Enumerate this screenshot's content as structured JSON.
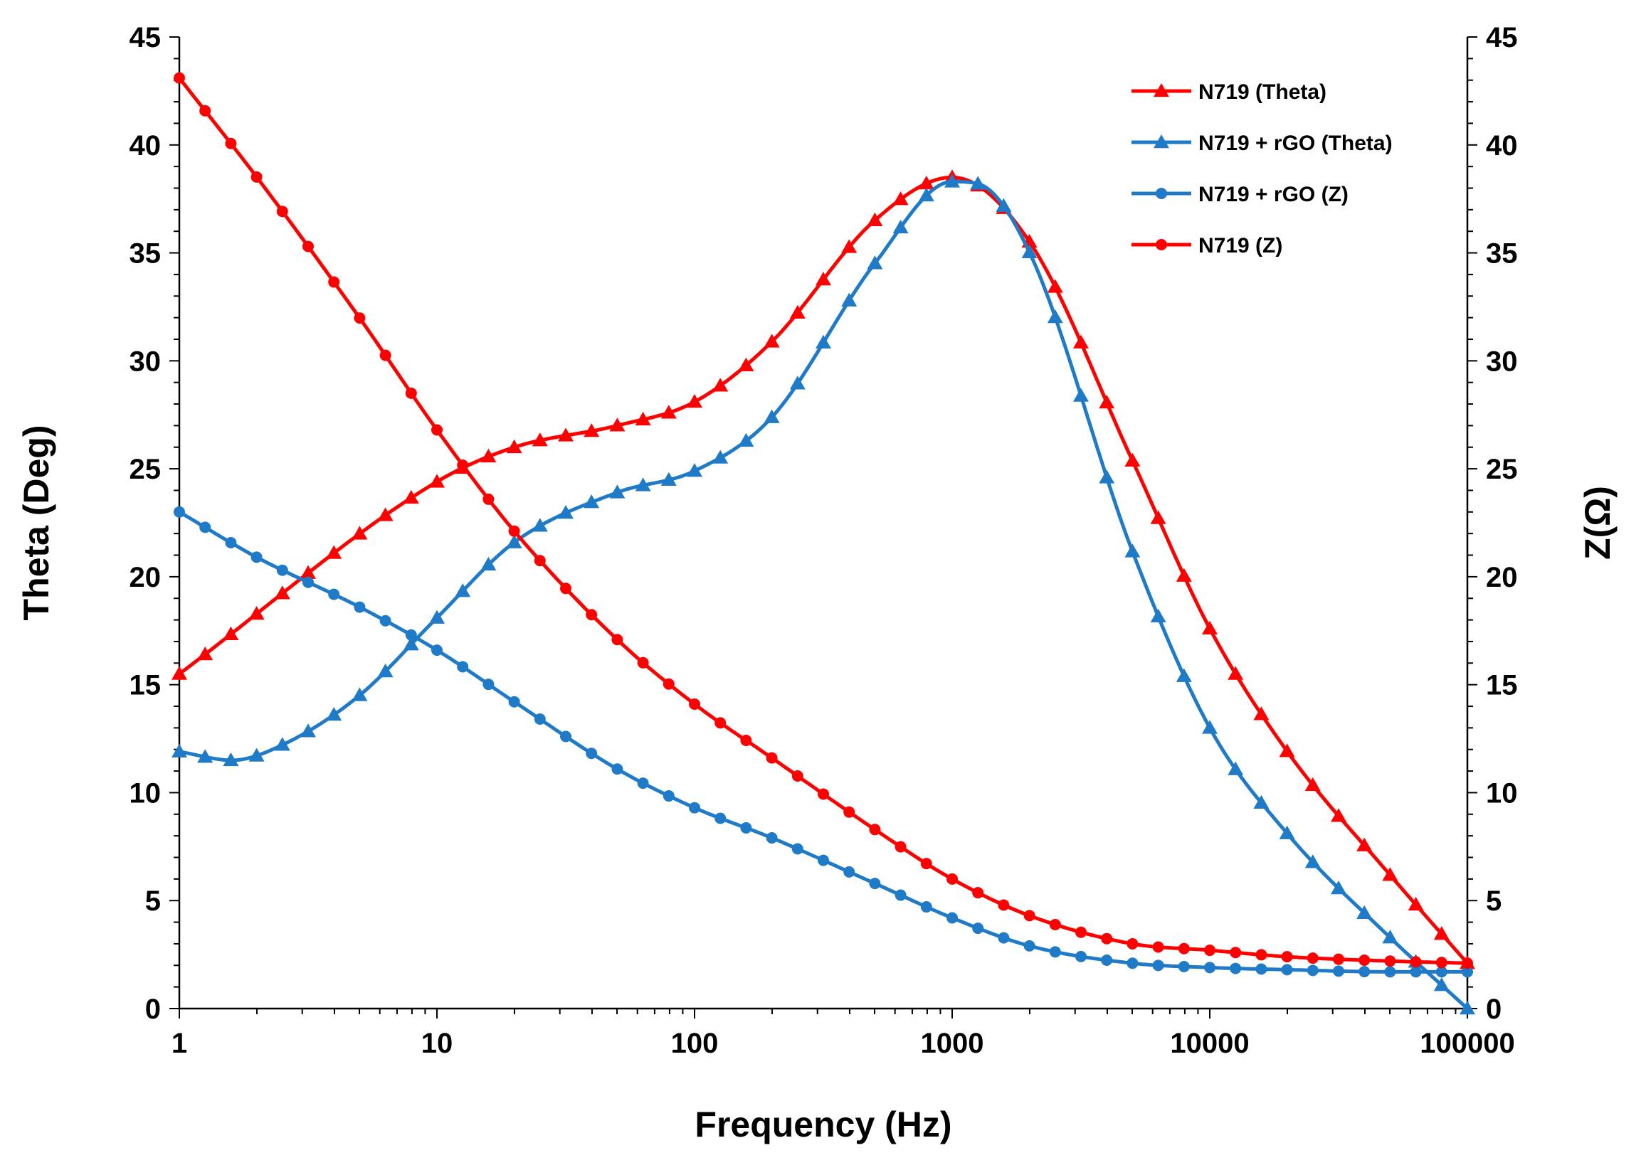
{
  "chart_data": {
    "type": "line",
    "title": "",
    "xlabel": "Frequency (Hz)",
    "ylabel": "Theta (Deg)",
    "y2label": "Z(Ω)",
    "x_scale": "log",
    "xlim": [
      1,
      100000
    ],
    "ylim": [
      0,
      45
    ],
    "y2lim": [
      0,
      45
    ],
    "x_tick_labels": [
      "1",
      "10",
      "100",
      "1000",
      "10000",
      "100000"
    ],
    "y_tick_labels": [
      "0",
      "5",
      "10",
      "15",
      "20",
      "25",
      "30",
      "35",
      "40",
      "45"
    ],
    "y2_tick_labels": [
      "0",
      "5",
      "10",
      "15",
      "20",
      "25",
      "30",
      "35",
      "40",
      "45"
    ],
    "grid": false,
    "legend_position": "top-right",
    "colors": {
      "red": "#ff0000",
      "blue": "#1f7bc7"
    },
    "series": [
      {
        "name": "N719 (Theta)",
        "color": "#ff0000",
        "marker": "triangle",
        "axis": "left",
        "x": [
          1,
          10,
          20,
          50,
          100,
          200,
          500,
          1000,
          2000,
          5000,
          10000,
          20000,
          50000,
          100000
        ],
        "values": [
          15.5,
          24.4,
          26.0,
          27.0,
          28.1,
          30.9,
          36.5,
          38.5,
          35.5,
          25.4,
          17.6,
          11.9,
          6.2,
          2.1
        ]
      },
      {
        "name": "N719 + rGO (Theta)",
        "color": "#1f7bc7",
        "marker": "triangle",
        "axis": "left",
        "x": [
          1,
          1.6,
          2.5,
          5,
          10,
          20,
          50,
          100,
          200,
          500,
          1000,
          1260,
          2000,
          5000,
          10000,
          20000,
          50000,
          100000
        ],
        "values": [
          11.9,
          11.5,
          12.2,
          14.5,
          18.1,
          21.6,
          23.9,
          24.9,
          27.4,
          34.5,
          38.3,
          38.2,
          35.0,
          21.2,
          13.0,
          8.1,
          3.3,
          0.0
        ]
      },
      {
        "name": "N719 + rGO (Z)",
        "color": "#1f7bc7",
        "marker": "circle",
        "axis": "right",
        "x": [
          1,
          2,
          5,
          10,
          20,
          50,
          100,
          200,
          500,
          1000,
          2000,
          5000,
          10000,
          20000,
          50000,
          100000
        ],
        "values": [
          23.0,
          20.9,
          18.6,
          16.6,
          14.2,
          11.1,
          9.3,
          7.9,
          5.8,
          4.2,
          2.9,
          2.1,
          1.9,
          1.8,
          1.7,
          1.7
        ]
      },
      {
        "name": "N719 (Z)",
        "color": "#ff0000",
        "marker": "circle",
        "axis": "right",
        "x": [
          1,
          2,
          5,
          10,
          20,
          50,
          100,
          200,
          500,
          1000,
          2000,
          5000,
          10000,
          20000,
          50000,
          100000
        ],
        "values": [
          43.1,
          38.5,
          32.0,
          26.8,
          22.1,
          17.1,
          14.1,
          11.6,
          8.3,
          6.0,
          4.3,
          3.0,
          2.7,
          2.4,
          2.2,
          2.1
        ]
      }
    ]
  }
}
